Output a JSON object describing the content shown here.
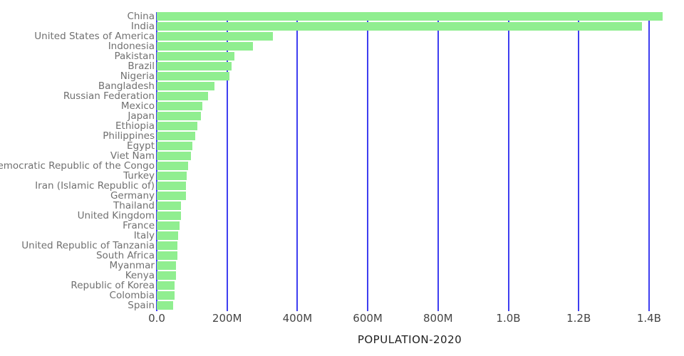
{
  "chart_data": {
    "type": "bar",
    "orientation": "horizontal",
    "title": "POPULATION-2020",
    "xlabel": "POPULATION-2020",
    "ylabel": "",
    "legend": false,
    "grid": true,
    "xlim_millions": [
      0,
      1500
    ],
    "x_axis": {
      "tick_labels": [
        "0.0",
        "200M",
        "400M",
        "600M",
        "800M",
        "1.0B",
        "1.2B",
        "1.4B"
      ],
      "tick_values_millions": [
        0,
        200,
        400,
        600,
        800,
        1000,
        1200,
        1400
      ]
    },
    "categories": [
      "China",
      "India",
      "United States of America",
      "Indonesia",
      "Pakistan",
      "Brazil",
      "Nigeria",
      "Bangladesh",
      "Russian Federation",
      "Mexico",
      "Japan",
      "Ethiopia",
      "Philippines",
      "Egypt",
      "Viet Nam",
      "Democratic Republic of the Congo",
      "Turkey",
      "Iran (Islamic Republic of)",
      "Germany",
      "Thailand",
      "United Kingdom",
      "France",
      "Italy",
      "United Republic of Tanzania",
      "South Africa",
      "Myanmar",
      "Kenya",
      "Republic of Korea",
      "Colombia",
      "Spain"
    ],
    "values_millions": [
      1439.3,
      1380.0,
      331.0,
      273.5,
      220.9,
      212.6,
      206.1,
      164.7,
      145.9,
      128.9,
      126.5,
      115.0,
      109.6,
      102.3,
      97.3,
      89.6,
      84.3,
      84.0,
      83.8,
      69.8,
      67.9,
      65.3,
      60.5,
      59.7,
      59.3,
      54.4,
      53.8,
      51.3,
      50.9,
      46.8
    ],
    "colors": {
      "bar": "#90EE90",
      "gridline": "#3E3EF0",
      "country_label": "#707070",
      "tick_label": "#454545",
      "title": "#1F1F1F",
      "background": "#FFFFFF"
    }
  }
}
